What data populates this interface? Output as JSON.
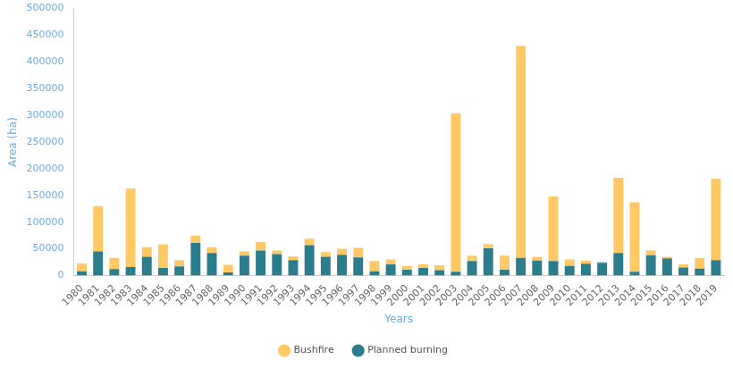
{
  "chart_data": {
    "type": "bar",
    "stacked": true,
    "x_label": "Years",
    "y_label": "Area (ha)",
    "categories": [
      "1980",
      "1981",
      "1982",
      "1983",
      "1984",
      "1985",
      "1986",
      "1987",
      "1988",
      "1989",
      "1990",
      "1991",
      "1992",
      "1993",
      "1994",
      "1995",
      "1996",
      "1997",
      "1998",
      "1999",
      "2000",
      "2001",
      "2002",
      "2003",
      "2004",
      "2005",
      "2006",
      "2007",
      "2008",
      "2009",
      "2010",
      "2011",
      "2012",
      "2013",
      "2014",
      "2015",
      "2016",
      "2017",
      "2018",
      "2019"
    ],
    "series": [
      {
        "name": "Planned burning",
        "color": "#2b7d8c",
        "values": [
          8000,
          45000,
          12000,
          16000,
          35000,
          14000,
          17000,
          61000,
          42000,
          6000,
          37000,
          47000,
          40000,
          29000,
          57000,
          35000,
          39000,
          34000,
          8000,
          21000,
          11000,
          14000,
          10000,
          7000,
          27000,
          51000,
          11000,
          33000,
          28000,
          27000,
          18000,
          22000,
          24000,
          42000,
          7000,
          38000,
          32000,
          15000,
          13000,
          29000
        ]
      },
      {
        "name": "Bushfire",
        "color": "#fec864",
        "values": [
          15000,
          85000,
          21000,
          147000,
          18000,
          44000,
          12000,
          14000,
          11000,
          14000,
          8000,
          16000,
          7000,
          7000,
          12000,
          9000,
          11000,
          18000,
          19000,
          9000,
          7000,
          7000,
          9000,
          297000,
          10000,
          8000,
          26000,
          397000,
          7000,
          121000,
          12000,
          6000,
          2000,
          141000,
          130000,
          9000,
          3000,
          6000,
          20000,
          152000
        ]
      }
    ],
    "ylim": [
      0,
      500000
    ],
    "yticks": [
      0,
      50000,
      100000,
      150000,
      200000,
      250000,
      300000,
      350000,
      400000,
      450000,
      500000
    ],
    "grid": false,
    "legend": "bottom"
  }
}
